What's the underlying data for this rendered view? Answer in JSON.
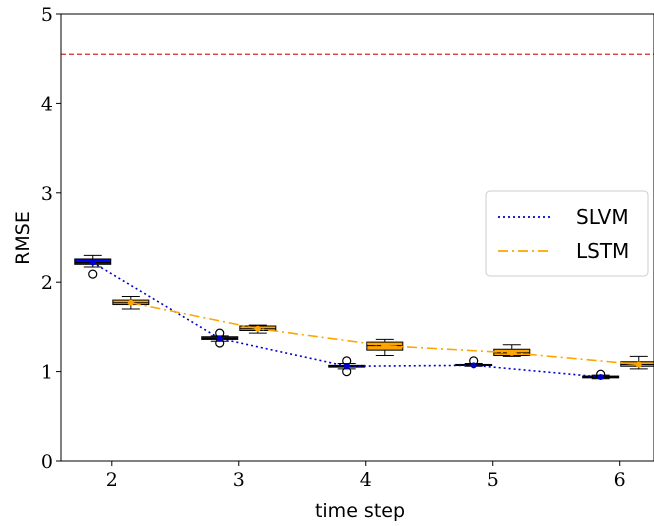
{
  "chart_data": {
    "type": "box",
    "xlabel": "time step",
    "ylabel": "RMSE",
    "xlim": [
      1.6,
      6.27
    ],
    "ylim": [
      0,
      5
    ],
    "xticks": [
      2,
      3,
      4,
      5,
      6
    ],
    "yticks": [
      0,
      1,
      2,
      3,
      4,
      5
    ],
    "legend_position": "center-right",
    "grid": false,
    "reference_line": {
      "y": 4.55,
      "color": "#d62728",
      "style": "dashed"
    },
    "series": [
      {
        "name": "SLVM",
        "line_color": "#0000cc",
        "line_style": "dotted",
        "box_color": "#0000ff",
        "x": [
          1.85,
          2.85,
          3.85,
          4.85,
          5.85
        ],
        "mean": [
          2.22,
          1.37,
          1.06,
          1.07,
          0.94
        ],
        "boxes": [
          {
            "whislo": 2.17,
            "q1": 2.2,
            "med": 2.22,
            "q3": 2.26,
            "whishi": 2.3,
            "fliers": [
              2.09
            ]
          },
          {
            "whislo": 1.34,
            "q1": 1.36,
            "med": 1.37,
            "q3": 1.39,
            "whishi": 1.4,
            "fliers": [
              1.32,
              1.43
            ]
          },
          {
            "whislo": 1.03,
            "q1": 1.05,
            "med": 1.06,
            "q3": 1.07,
            "whishi": 1.09,
            "fliers": [
              1.0,
              1.12
            ]
          },
          {
            "whislo": 1.06,
            "q1": 1.07,
            "med": 1.07,
            "q3": 1.08,
            "whishi": 1.09,
            "fliers": [
              1.12
            ]
          },
          {
            "whislo": 0.92,
            "q1": 0.93,
            "med": 0.94,
            "q3": 0.95,
            "whishi": 0.96,
            "fliers": [
              0.97
            ]
          }
        ]
      },
      {
        "name": "LSTM",
        "line_color": "#ffa500",
        "line_style": "dashdot",
        "box_color": "#ffa500",
        "x": [
          2.15,
          3.15,
          4.15,
          5.15,
          6.15
        ],
        "mean": [
          1.77,
          1.48,
          1.29,
          1.21,
          1.08
        ],
        "boxes": [
          {
            "whislo": 1.7,
            "q1": 1.75,
            "med": 1.77,
            "q3": 1.8,
            "whishi": 1.84,
            "fliers": []
          },
          {
            "whislo": 1.43,
            "q1": 1.46,
            "med": 1.48,
            "q3": 1.51,
            "whishi": 1.52,
            "fliers": []
          },
          {
            "whislo": 1.18,
            "q1": 1.24,
            "med": 1.29,
            "q3": 1.33,
            "whishi": 1.36,
            "fliers": []
          },
          {
            "whislo": 1.17,
            "q1": 1.18,
            "med": 1.21,
            "q3": 1.25,
            "whishi": 1.3,
            "fliers": []
          },
          {
            "whislo": 1.03,
            "q1": 1.06,
            "med": 1.08,
            "q3": 1.11,
            "whishi": 1.17,
            "fliers": []
          }
        ]
      }
    ]
  }
}
